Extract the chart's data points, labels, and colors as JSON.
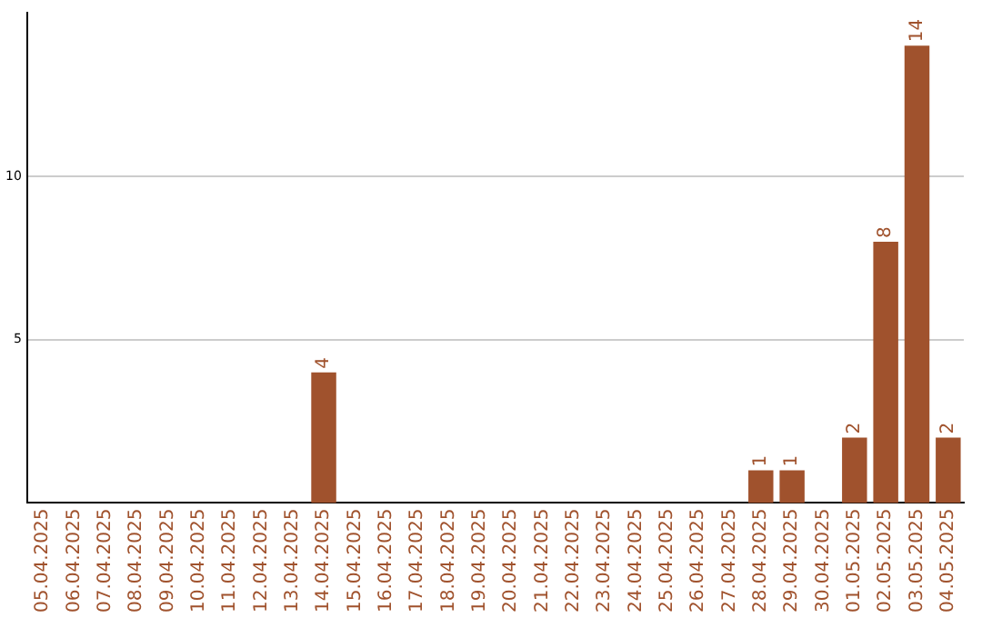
{
  "chart_data": {
    "type": "bar",
    "categories": [
      "05.04.2025",
      "06.04.2025",
      "07.04.2025",
      "08.04.2025",
      "09.04.2025",
      "10.04.2025",
      "11.04.2025",
      "12.04.2025",
      "13.04.2025",
      "14.04.2025",
      "15.04.2025",
      "16.04.2025",
      "17.04.2025",
      "18.04.2025",
      "19.04.2025",
      "20.04.2025",
      "21.04.2025",
      "22.04.2025",
      "23.04.2025",
      "24.04.2025",
      "25.04.2025",
      "26.04.2025",
      "27.04.2025",
      "28.04.2025",
      "29.04.2025",
      "30.04.2025",
      "01.05.2025",
      "02.05.2025",
      "03.05.2025",
      "04.05.2025"
    ],
    "values": [
      0,
      0,
      0,
      0,
      0,
      0,
      0,
      0,
      0,
      4,
      0,
      0,
      0,
      0,
      0,
      0,
      0,
      0,
      0,
      0,
      0,
      0,
      0,
      1,
      1,
      0,
      2,
      8,
      14,
      2
    ],
    "value_labels": [
      null,
      null,
      null,
      null,
      null,
      null,
      null,
      null,
      null,
      "4",
      null,
      null,
      null,
      null,
      null,
      null,
      null,
      null,
      null,
      null,
      null,
      null,
      null,
      "1",
      "1",
      null,
      "2",
      "8",
      "14",
      "2"
    ],
    "color": "#a0522d",
    "ylim": [
      0,
      15
    ],
    "yticks": [
      5,
      10
    ],
    "grid": "y"
  }
}
